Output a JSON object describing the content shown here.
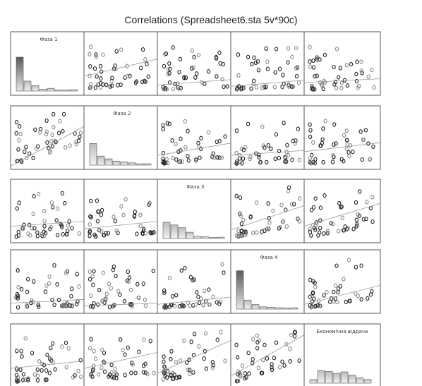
{
  "chart_data": {
    "type": "scatter",
    "title": "Correlations (Spreadsheet6.sta 5v*90c)",
    "variables": [
      "Фаза 1",
      "Фаза 2",
      "Фаза 3",
      "Фаза 4",
      "Економічна віддача"
    ],
    "diagonal": "histogram",
    "histograms": [
      [
        0.75,
        0.22,
        0.12,
        0.04,
        0.06,
        0.02,
        0.02,
        0.03
      ],
      [
        0.48,
        0.2,
        0.14,
        0.09,
        0.07,
        0.05,
        0.03,
        0.03
      ],
      [
        0.36,
        0.3,
        0.24,
        0.14,
        0.05,
        0.04,
        0.02,
        0.03
      ],
      [
        0.85,
        0.2,
        0.1,
        0.05,
        0.04,
        0.03,
        0.02,
        0.03
      ],
      [
        0.08,
        0.28,
        0.26,
        0.22,
        0.25,
        0.18,
        0.12,
        0.08
      ]
    ],
    "fit_lines": {
      "0-1": [
        0.3,
        0.58
      ],
      "0-2": [
        0.16,
        0.25
      ],
      "0-3": [
        0.14,
        0.24
      ],
      "0-4": [
        0.2,
        0.26
      ],
      "1-0": [
        0.05,
        0.7
      ],
      "1-2": [
        0.22,
        0.42
      ],
      "1-3": [
        0.22,
        0.3
      ],
      "1-4": [
        0.28,
        0.42
      ],
      "2-0": [
        0.26,
        0.34
      ],
      "2-1": [
        0.22,
        0.34
      ],
      "2-3": [
        0.2,
        0.6
      ],
      "2-4": [
        0.26,
        0.62
      ],
      "3-0": [
        0.16,
        0.22
      ],
      "3-1": [
        0.12,
        0.16
      ],
      "3-2": [
        0.14,
        0.26
      ],
      "3-4": [
        0.14,
        0.44
      ],
      "4-0": [
        0.3,
        0.42
      ],
      "4-1": [
        0.3,
        0.56
      ],
      "4-2": [
        0.22,
        0.76
      ],
      "4-3": [
        0.18,
        0.85
      ]
    },
    "xlabel": "",
    "ylabel": "",
    "grid": false
  }
}
